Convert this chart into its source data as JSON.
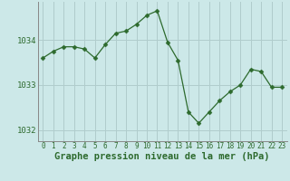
{
  "hours": [
    0,
    1,
    2,
    3,
    4,
    5,
    6,
    7,
    8,
    9,
    10,
    11,
    12,
    13,
    14,
    15,
    16,
    17,
    18,
    19,
    20,
    21,
    22,
    23
  ],
  "pressure": [
    1033.6,
    1033.75,
    1033.85,
    1033.85,
    1033.8,
    1033.6,
    1033.9,
    1034.15,
    1034.2,
    1034.35,
    1034.55,
    1034.65,
    1033.95,
    1033.55,
    1032.4,
    1032.15,
    1032.4,
    1032.65,
    1032.85,
    1033.0,
    1033.35,
    1033.3,
    1032.95,
    1032.95
  ],
  "line_color": "#2d6a2d",
  "marker": "D",
  "marker_size": 2.5,
  "bg_color": "#cce8e8",
  "grid_color": "#b0cccc",
  "xlabel": "Graphe pression niveau de la mer (hPa)",
  "xlabel_fontsize": 7.5,
  "ytick_labels": [
    1032,
    1033,
    1034
  ],
  "xtick_labels": [
    0,
    1,
    2,
    3,
    4,
    5,
    6,
    7,
    8,
    9,
    10,
    11,
    12,
    13,
    14,
    15,
    16,
    17,
    18,
    19,
    20,
    21,
    22,
    23
  ],
  "ylim": [
    1031.75,
    1034.85
  ],
  "text_color": "#2d6a2d",
  "tick_fontsize": 6.5,
  "xtick_fontsize": 5.5
}
